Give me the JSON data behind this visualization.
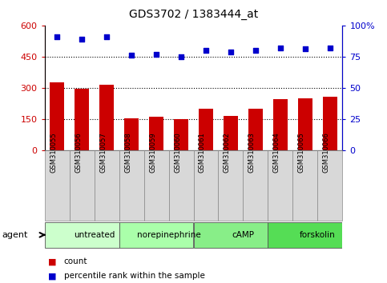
{
  "title": "GDS3702 / 1383444_at",
  "samples": [
    "GSM310055",
    "GSM310056",
    "GSM310057",
    "GSM310058",
    "GSM310059",
    "GSM310060",
    "GSM310061",
    "GSM310062",
    "GSM310063",
    "GSM310064",
    "GSM310065",
    "GSM310066"
  ],
  "counts": [
    325,
    297,
    313,
    152,
    160,
    150,
    200,
    163,
    200,
    245,
    250,
    258
  ],
  "percentile_ranks": [
    91,
    89,
    91,
    76,
    77,
    75,
    80,
    79,
    80,
    82,
    81,
    82
  ],
  "bar_color": "#cc0000",
  "dot_color": "#0000cc",
  "ylim_left": [
    0,
    600
  ],
  "ylim_right": [
    0,
    100
  ],
  "yticks_left": [
    0,
    150,
    300,
    450,
    600
  ],
  "ytick_labels_left": [
    "0",
    "150",
    "300",
    "450",
    "600"
  ],
  "yticks_right": [
    0,
    25,
    50,
    75,
    100
  ],
  "ytick_labels_right": [
    "0",
    "25",
    "50",
    "75",
    "100%"
  ],
  "agent_groups": [
    {
      "label": "untreated",
      "start": 0,
      "end": 3
    },
    {
      "label": "norepinephrine",
      "start": 3,
      "end": 6
    },
    {
      "label": "cAMP",
      "start": 6,
      "end": 9
    },
    {
      "label": "forskolin",
      "start": 9,
      "end": 12
    }
  ],
  "agent_group_colors": [
    "#ccffcc",
    "#aaffaa",
    "#88ee88",
    "#55dd55"
  ],
  "legend_count_label": "count",
  "legend_pct_label": "percentile rank within the sample",
  "agent_label": "agent",
  "background_color": "#ffffff",
  "tick_label_color_left": "#cc0000",
  "tick_label_color_right": "#0000cc",
  "sample_area_color": "#d8d8d8"
}
